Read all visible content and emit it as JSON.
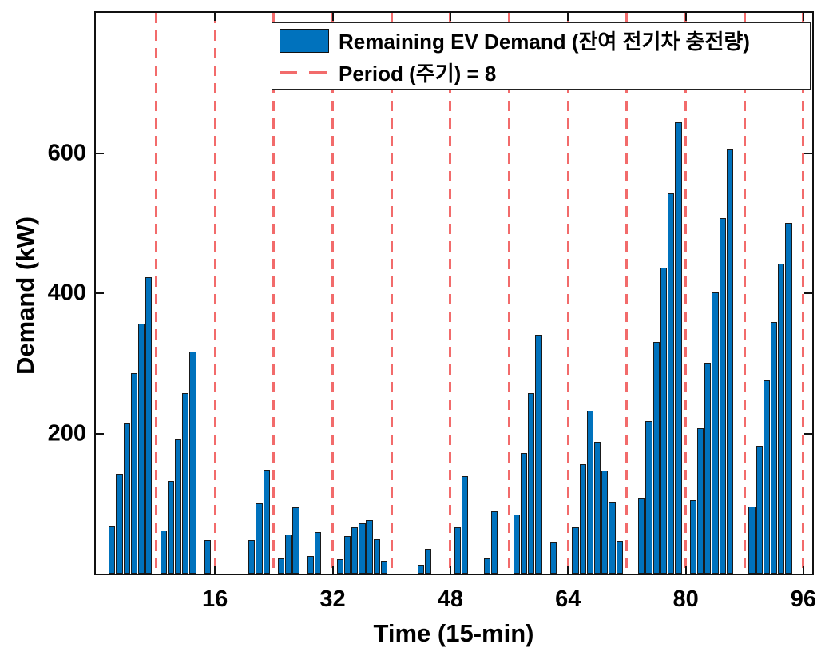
{
  "chart_data": {
    "type": "bar",
    "title": "",
    "xlabel": "Time (15-min)",
    "ylabel": "Demand (kW)",
    "x_start": 1,
    "values": [
      0,
      68,
      143,
      214,
      286,
      357,
      423,
      0,
      61,
      132,
      192,
      257,
      317,
      0,
      48,
      0,
      0,
      0,
      0,
      0,
      48,
      100,
      148,
      0,
      23,
      56,
      95,
      0,
      25,
      59,
      0,
      0,
      20,
      53,
      66,
      72,
      76,
      49,
      18,
      0,
      0,
      0,
      0,
      12,
      35,
      0,
      0,
      0,
      66,
      139,
      0,
      0,
      23,
      89,
      0,
      0,
      84,
      172,
      257,
      341,
      0,
      46,
      0,
      0,
      66,
      156,
      232,
      188,
      147,
      102,
      47,
      0,
      0,
      108,
      218,
      331,
      437,
      543,
      644,
      0,
      105,
      207,
      301,
      401,
      507,
      605,
      0,
      0,
      96,
      182,
      276,
      359,
      442,
      500,
      0,
      0
    ],
    "xlim": [
      -0.2,
      97.2
    ],
    "ylim": [
      0,
      800
    ],
    "xticks": [
      16,
      32,
      48,
      64,
      80,
      96
    ],
    "yticks": [
      200,
      400,
      600
    ],
    "period": 8,
    "period_lines_x": [
      8,
      16,
      24,
      32,
      40,
      48,
      56,
      64,
      72,
      80,
      88,
      96
    ],
    "bar_color": "#0072BD",
    "bar_edge_color": "#1a1a1a",
    "period_line_color": "#f26b6b",
    "grid": false,
    "legend_position": "top-right-inside",
    "legend": [
      {
        "label": "Remaining EV Demand (잔여 전기차 충전량)",
        "swatch": "bar-patch"
      },
      {
        "label": "Period (주기) = 8",
        "swatch": "dashed-line"
      }
    ]
  }
}
